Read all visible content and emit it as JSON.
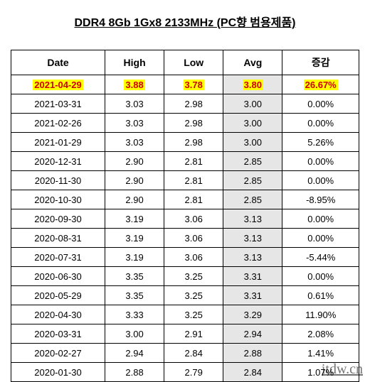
{
  "title": "DDR4 8Gb 1Gx8 2133MHz (PC향 범용제품)",
  "columns": [
    "Date",
    "High",
    "Low",
    "Avg",
    "증감"
  ],
  "highlight_row_index": 0,
  "colors": {
    "highlight_text": "#d00000",
    "highlight_bg": "#ffff00",
    "avg_bg": "#e6e6e6",
    "border": "#000000",
    "background": "#ffffff"
  },
  "rows": [
    {
      "date": "2021-04-29",
      "high": "3.88",
      "low": "3.78",
      "avg": "3.80",
      "chg": "26.67%"
    },
    {
      "date": "2021-03-31",
      "high": "3.03",
      "low": "2.98",
      "avg": "3.00",
      "chg": "0.00%"
    },
    {
      "date": "2021-02-26",
      "high": "3.03",
      "low": "2.98",
      "avg": "3.00",
      "chg": "0.00%"
    },
    {
      "date": "2021-01-29",
      "high": "3.03",
      "low": "2.98",
      "avg": "3.00",
      "chg": "5.26%"
    },
    {
      "date": "2020-12-31",
      "high": "2.90",
      "low": "2.81",
      "avg": "2.85",
      "chg": "0.00%"
    },
    {
      "date": "2020-11-30",
      "high": "2.90",
      "low": "2.81",
      "avg": "2.85",
      "chg": "0.00%"
    },
    {
      "date": "2020-10-30",
      "high": "2.90",
      "low": "2.81",
      "avg": "2.85",
      "chg": "-8.95%"
    },
    {
      "date": "2020-09-30",
      "high": "3.19",
      "low": "3.06",
      "avg": "3.13",
      "chg": "0.00%"
    },
    {
      "date": "2020-08-31",
      "high": "3.19",
      "low": "3.06",
      "avg": "3.13",
      "chg": "0.00%"
    },
    {
      "date": "2020-07-31",
      "high": "3.19",
      "low": "3.06",
      "avg": "3.13",
      "chg": "-5.44%"
    },
    {
      "date": "2020-06-30",
      "high": "3.35",
      "low": "3.25",
      "avg": "3.31",
      "chg": "0.00%"
    },
    {
      "date": "2020-05-29",
      "high": "3.35",
      "low": "3.25",
      "avg": "3.31",
      "chg": "0.61%"
    },
    {
      "date": "2020-04-30",
      "high": "3.33",
      "low": "3.25",
      "avg": "3.29",
      "chg": "11.90%"
    },
    {
      "date": "2020-03-31",
      "high": "3.00",
      "low": "2.91",
      "avg": "2.94",
      "chg": "2.08%"
    },
    {
      "date": "2020-02-27",
      "high": "2.94",
      "low": "2.84",
      "avg": "2.88",
      "chg": "1.41%"
    },
    {
      "date": "2020-01-30",
      "high": "2.88",
      "low": "2.79",
      "avg": "2.84",
      "chg": "1.07%"
    }
  ],
  "watermark": "itdw.cn"
}
